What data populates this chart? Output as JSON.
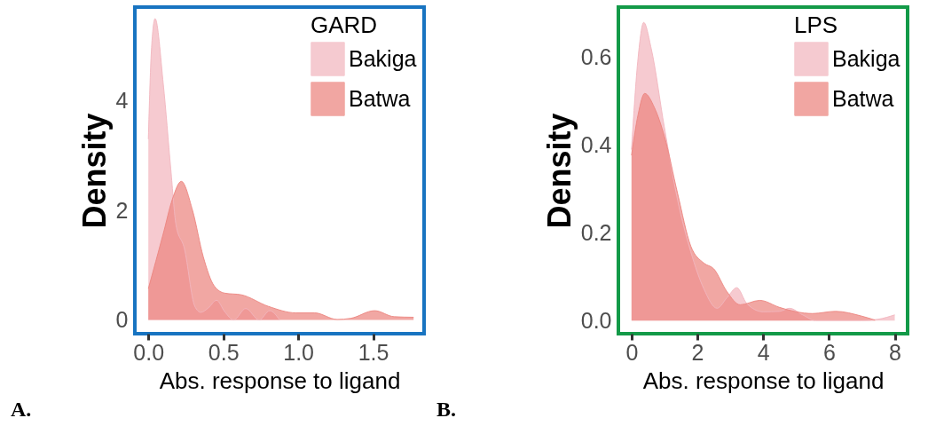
{
  "chart_data": [
    {
      "type": "area",
      "xlabel": "Abs. response to ligand",
      "ylabel": "Density",
      "legend_title": "GARD",
      "legend": "top right",
      "grid": false,
      "xlim": [
        -0.09,
        1.84
      ],
      "ylim": [
        -0.25,
        5.71
      ],
      "xticks": [
        {
          "value": 0,
          "label": "0.0"
        },
        0.5,
        {
          "value": 1,
          "label": "1.0"
        },
        1.5
      ],
      "yticks": [
        0,
        2,
        4
      ],
      "annotations": [
        "A."
      ],
      "series": [
        {
          "name": "Bakiga",
          "color": "#f2b6be",
          "x": [
            0,
            0.02,
            0.045,
            0.1,
            0.15,
            0.185,
            0.24,
            0.31,
            0.35,
            0.4,
            0.455,
            0.51,
            0.57,
            0.65,
            0.74,
            0.81,
            0.876
          ],
          "values": [
            3.3,
            4.9,
            5.5,
            4.3,
            2.75,
            1.73,
            1.31,
            0.25,
            0.14,
            0.22,
            0.36,
            0.15,
            0,
            0.21,
            0,
            0.17,
            0
          ]
        },
        {
          "name": "Batwa",
          "color": "#ec857f",
          "x": [
            0,
            0.1,
            0.16,
            0.22,
            0.295,
            0.367,
            0.44,
            0.51,
            0.62,
            0.8,
            0.985,
            1.11,
            1.26,
            1.35,
            1.51,
            1.64,
            1.77
          ],
          "values": [
            0.57,
            1.58,
            2.2,
            2.53,
            2.0,
            1.15,
            0.62,
            0.49,
            0.46,
            0.25,
            0.13,
            0.13,
            0.01,
            0.03,
            0.17,
            0.06,
            0.05
          ]
        }
      ]
    },
    {
      "type": "area",
      "xlabel": "Abs. response to ligand",
      "ylabel": "Density",
      "legend_title": "LPS",
      "legend": "top right",
      "grid": false,
      "xlim": [
        -0.4,
        8.39
      ],
      "ylim": [
        -0.03,
        0.715
      ],
      "xticks": [
        0,
        2,
        4,
        6,
        8
      ],
      "yticks": [
        {
          "value": 0,
          "label": "0.0"
        },
        0.2,
        0.4,
        0.6
      ],
      "annotations": [
        "B."
      ],
      "series": [
        {
          "name": "Bakiga",
          "color": "#f2b6be",
          "x": [
            0,
            0.2,
            0.37,
            0.6,
            1.0,
            1.4,
            1.8,
            2.2,
            2.6,
            2.9,
            3.2,
            3.5,
            4.0,
            4.5,
            4.8,
            5.2,
            5.6,
            7.0,
            7.5,
            8.0
          ],
          "values": [
            0.39,
            0.6,
            0.68,
            0.62,
            0.44,
            0.275,
            0.157,
            0.072,
            0.028,
            0.052,
            0.075,
            0.039,
            0.02,
            0.021,
            0.028,
            0.013,
            0,
            0,
            0.003,
            0.013
          ]
        },
        {
          "name": "Batwa",
          "color": "#ec857f",
          "x": [
            0,
            0.2,
            0.4,
            0.7,
            1.0,
            1.4,
            1.8,
            2.2,
            2.5,
            2.9,
            3.3,
            3.9,
            4.5,
            5.0,
            5.5,
            6.2,
            7.0,
            7.4
          ],
          "values": [
            0.377,
            0.47,
            0.518,
            0.485,
            0.42,
            0.29,
            0.17,
            0.131,
            0.118,
            0.066,
            0.036,
            0.046,
            0.03,
            0.02,
            0.016,
            0.021,
            0.01,
            0.001
          ]
        }
      ]
    }
  ]
}
